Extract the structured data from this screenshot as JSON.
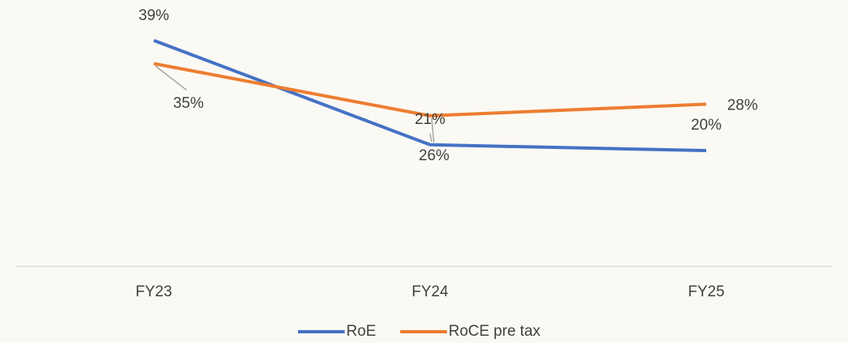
{
  "chart_data": {
    "type": "line",
    "categories": [
      "FY23",
      "FY24",
      "FY25"
    ],
    "series": [
      {
        "name": "RoE",
        "color": "#4472c4",
        "values": [
          39,
          21,
          20
        ],
        "value_labels": [
          "39%",
          "21%",
          "20%"
        ]
      },
      {
        "name": "RoCE pre tax",
        "color": "#ed7d31",
        "values": [
          35,
          26,
          28
        ],
        "value_labels": [
          "35%",
          "26%",
          "28%"
        ]
      }
    ],
    "ylim": [
      0,
      40
    ]
  }
}
